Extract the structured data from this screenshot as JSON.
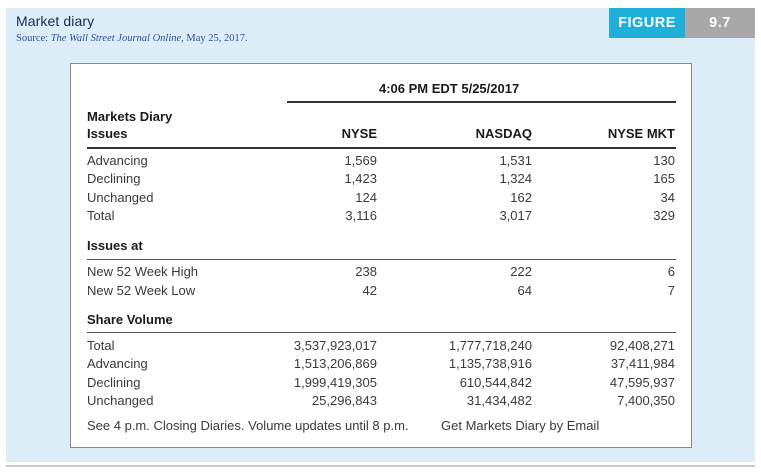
{
  "figure": {
    "title": "Market diary",
    "source_prefix": "Source: ",
    "source_italic": "The Wall Street Journal Online,",
    "source_suffix": " May 25, 2017.",
    "badge_label": "FIGURE",
    "badge_number": "9.7"
  },
  "table": {
    "timestamp": "4:06 PM EDT 5/25/2017",
    "header_title": "Markets Diary",
    "header_subtitle": "Issues",
    "columns": [
      "NYSE",
      "NASDAQ",
      "NYSE MKT"
    ],
    "issues": [
      {
        "label": "Advancing",
        "values": [
          "1,569",
          "1,531",
          "130"
        ]
      },
      {
        "label": "Declining",
        "values": [
          "1,423",
          "1,324",
          "165"
        ]
      },
      {
        "label": "Unchanged",
        "values": [
          "124",
          "162",
          "34"
        ]
      },
      {
        "label": "Total",
        "values": [
          "3,116",
          "3,017",
          "329"
        ]
      }
    ],
    "issues_at_heading": "Issues at",
    "issues_at": [
      {
        "label": "New 52 Week High",
        "values": [
          "238",
          "222",
          "6"
        ]
      },
      {
        "label": "New 52 Week Low",
        "values": [
          "42",
          "64",
          "7"
        ]
      }
    ],
    "share_volume_heading": "Share Volume",
    "share_volume": [
      {
        "label": "Total",
        "values": [
          "3,537,923,017",
          "1,777,718,240",
          "92,408,271"
        ]
      },
      {
        "label": "Advancing",
        "values": [
          "1,513,206,869",
          "1,135,738,916",
          "37,411,984"
        ]
      },
      {
        "label": "Declining",
        "values": [
          "1,999,419,305",
          "610,544,842",
          "47,595,937"
        ]
      },
      {
        "label": "Unchanged",
        "values": [
          "25,296,843",
          "31,434,482",
          "7,400,350"
        ]
      }
    ],
    "footer_left": "See 4 p.m. Closing Diaries. Volume updates until 8 p.m.",
    "footer_right": "Get Markets Diary by Email"
  }
}
